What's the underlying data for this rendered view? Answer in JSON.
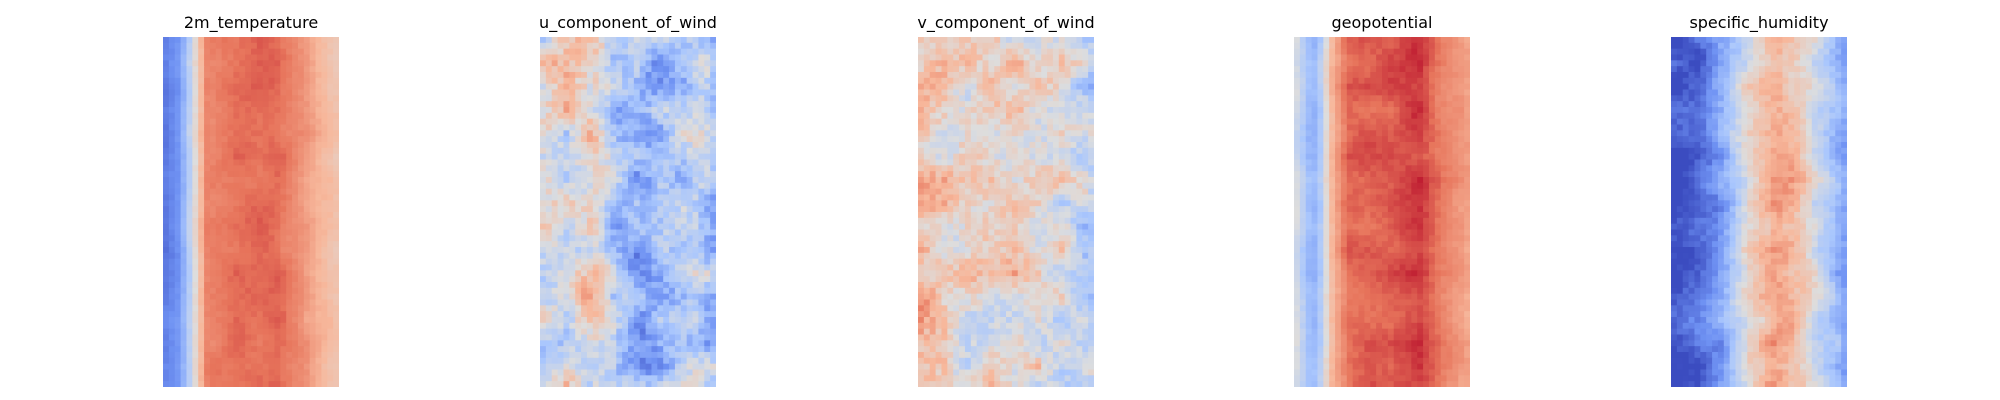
{
  "figure": {
    "colormap": "coolwarm",
    "colormap_stops": [
      "#3b4cc0",
      "#6f92f3",
      "#aac7fd",
      "#dddddd",
      "#f7b89c",
      "#e7745b",
      "#b40426"
    ],
    "axes_visible": false
  },
  "chart_data": [
    {
      "type": "heatmap",
      "title": "2m_temperature",
      "grid_size": [
        60,
        30
      ],
      "value_range": [
        0,
        1
      ],
      "description_profile": [
        {
          "col_fraction": 0.0,
          "value": 0.12
        },
        {
          "col_fraction": 0.07,
          "value": 0.18
        },
        {
          "col_fraction": 0.12,
          "value": 0.32
        },
        {
          "col_fraction": 0.17,
          "value": 0.52
        },
        {
          "col_fraction": 0.24,
          "value": 0.8
        },
        {
          "col_fraction": 0.45,
          "value": 0.84
        },
        {
          "col_fraction": 0.65,
          "value": 0.85
        },
        {
          "col_fraction": 0.8,
          "value": 0.76
        },
        {
          "col_fraction": 0.9,
          "value": 0.68
        },
        {
          "col_fraction": 1.0,
          "value": 0.62
        }
      ],
      "noise": 0.04
    },
    {
      "type": "heatmap",
      "title": "u_component_of_wind",
      "grid_size": [
        60,
        30
      ],
      "value_range": [
        0,
        1
      ],
      "description_profile": [
        {
          "col_fraction": 0.0,
          "value": 0.48
        },
        {
          "col_fraction": 0.15,
          "value": 0.52
        },
        {
          "col_fraction": 0.3,
          "value": 0.58
        },
        {
          "col_fraction": 0.45,
          "value": 0.32
        },
        {
          "col_fraction": 0.6,
          "value": 0.24
        },
        {
          "col_fraction": 0.75,
          "value": 0.36
        },
        {
          "col_fraction": 0.9,
          "value": 0.42
        },
        {
          "col_fraction": 1.0,
          "value": 0.3
        }
      ],
      "noise": 0.22
    },
    {
      "type": "heatmap",
      "title": "v_component_of_wind",
      "grid_size": [
        60,
        30
      ],
      "value_range": [
        0,
        1
      ],
      "description_profile": [
        {
          "col_fraction": 0.0,
          "value": 0.62
        },
        {
          "col_fraction": 0.2,
          "value": 0.52
        },
        {
          "col_fraction": 0.4,
          "value": 0.57
        },
        {
          "col_fraction": 0.6,
          "value": 0.55
        },
        {
          "col_fraction": 0.8,
          "value": 0.5
        },
        {
          "col_fraction": 1.0,
          "value": 0.4
        }
      ],
      "noise": 0.2
    },
    {
      "type": "heatmap",
      "title": "geopotential",
      "grid_size": [
        60,
        30
      ],
      "value_range": [
        0,
        1
      ],
      "description_profile": [
        {
          "col_fraction": 0.0,
          "value": 0.45
        },
        {
          "col_fraction": 0.07,
          "value": 0.3
        },
        {
          "col_fraction": 0.12,
          "value": 0.28
        },
        {
          "col_fraction": 0.2,
          "value": 0.65
        },
        {
          "col_fraction": 0.3,
          "value": 0.85
        },
        {
          "col_fraction": 0.55,
          "value": 0.87
        },
        {
          "col_fraction": 0.72,
          "value": 0.92
        },
        {
          "col_fraction": 0.85,
          "value": 0.8
        },
        {
          "col_fraction": 1.0,
          "value": 0.72
        }
      ],
      "noise": 0.05
    },
    {
      "type": "heatmap",
      "title": "specific_humidity",
      "grid_size": [
        60,
        30
      ],
      "value_range": [
        0,
        1
      ],
      "description_profile": [
        {
          "col_fraction": 0.0,
          "value": 0.02
        },
        {
          "col_fraction": 0.15,
          "value": 0.06
        },
        {
          "col_fraction": 0.3,
          "value": 0.25
        },
        {
          "col_fraction": 0.45,
          "value": 0.55
        },
        {
          "col_fraction": 0.6,
          "value": 0.72
        },
        {
          "col_fraction": 0.75,
          "value": 0.6
        },
        {
          "col_fraction": 0.9,
          "value": 0.35
        },
        {
          "col_fraction": 1.0,
          "value": 0.2
        }
      ],
      "noise": 0.12
    }
  ]
}
